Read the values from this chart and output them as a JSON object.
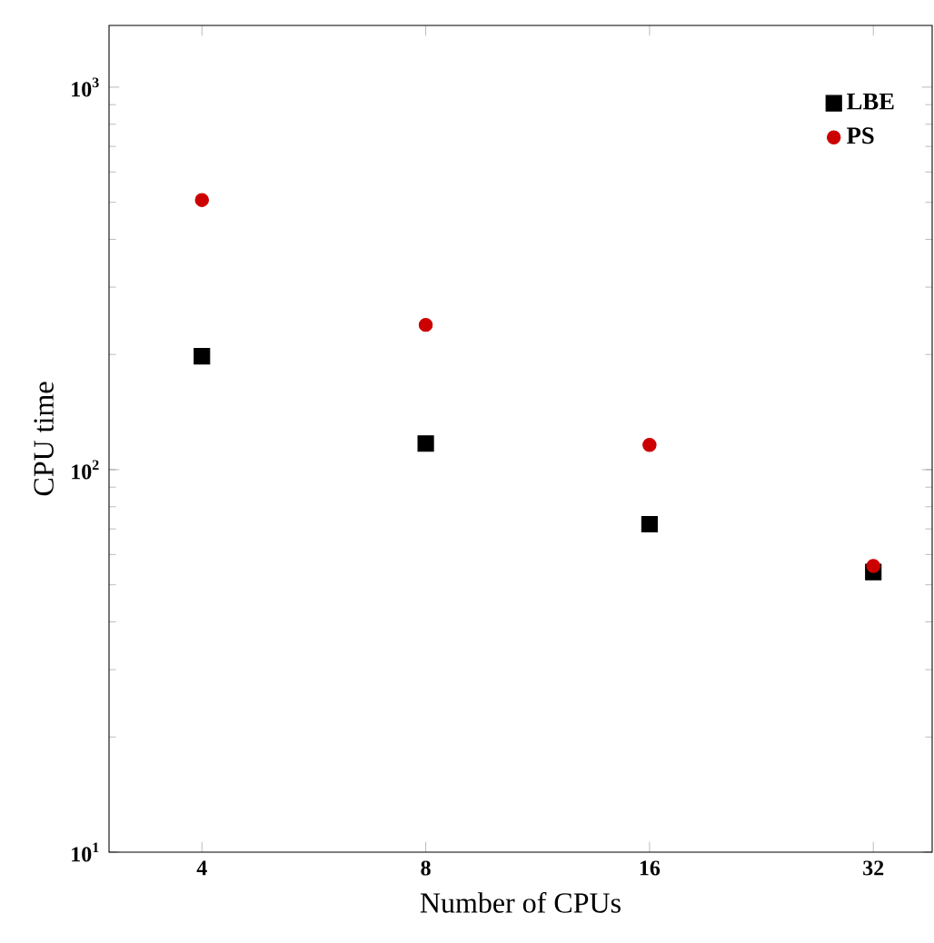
{
  "chart_data": {
    "type": "scatter",
    "xlabel": "Number of CPUs",
    "ylabel": "CPU time",
    "log": "xy",
    "x": [
      4,
      8,
      16,
      32
    ],
    "xlim": [
      3,
      38.4
    ],
    "xticks": [
      4,
      8,
      16,
      32
    ],
    "ylim": [
      10,
      1450
    ],
    "yticks": [
      {
        "value": 10,
        "label": "10$^{1}$"
      },
      {
        "value": 100,
        "label": "10$^{2}$"
      },
      {
        "value": 1000,
        "label": "10$^{3}$"
      }
    ],
    "legend": "top right",
    "grid": false,
    "series": [
      {
        "name": "LBE",
        "color": "#000000",
        "marker": "square",
        "values": [
          198,
          117,
          72,
          54
        ]
      },
      {
        "name": "PS",
        "color": "#cc0000",
        "marker": "circle",
        "values": [
          507,
          239,
          116,
          56
        ]
      }
    ]
  }
}
